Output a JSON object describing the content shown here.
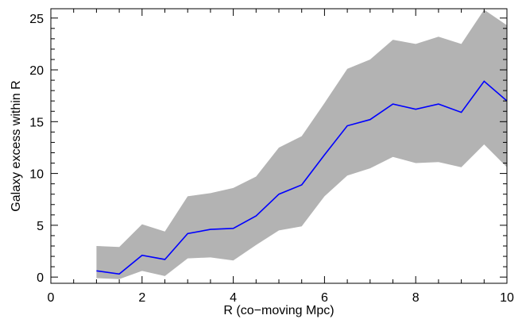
{
  "chart_data": {
    "type": "area",
    "xlabel": "R (co−moving Mpc)",
    "ylabel": "Galaxy excess within R",
    "xlim": [
      0,
      10
    ],
    "ylim": [
      -0.6,
      25.9
    ],
    "xticks": [
      0,
      2,
      4,
      6,
      8,
      10
    ],
    "xtick_labels": [
      "0",
      "2",
      "4",
      "6",
      "8",
      "10"
    ],
    "yticks": [
      0,
      5,
      10,
      15,
      20,
      25
    ],
    "ytick_labels": [
      "0",
      "5",
      "10",
      "15",
      "20",
      "25"
    ],
    "x_minor_step": 0.5,
    "y_minor_step": 1,
    "grid": false,
    "series": [
      {
        "color": "#0000ff",
        "x": [
          1.0,
          1.5,
          2.0,
          2.5,
          3.0,
          3.5,
          4.0,
          4.5,
          5.0,
          5.5,
          6.0,
          6.5,
          7.0,
          7.5,
          8.0,
          8.5,
          9.0,
          9.5,
          10.0
        ],
        "values": [
          0.6,
          0.3,
          2.1,
          1.7,
          4.2,
          4.6,
          4.7,
          5.9,
          8.0,
          8.9,
          11.8,
          14.6,
          15.2,
          16.7,
          16.2,
          16.7,
          15.9,
          18.9,
          17.0
        ]
      }
    ],
    "band": {
      "color": "#b3b3b3",
      "x": [
        1.0,
        1.5,
        2.0,
        2.5,
        3.0,
        3.5,
        4.0,
        4.5,
        5.0,
        5.5,
        6.0,
        6.5,
        7.0,
        7.5,
        8.0,
        8.5,
        9.0,
        9.5,
        10.0
      ],
      "upper": [
        3.0,
        2.9,
        5.1,
        4.4,
        7.8,
        8.1,
        8.6,
        9.7,
        12.5,
        13.6,
        16.8,
        20.1,
        21.0,
        22.9,
        22.5,
        23.2,
        22.5,
        25.8,
        24.3
      ],
      "lower": [
        -0.1,
        -0.2,
        0.6,
        0.1,
        1.8,
        1.9,
        1.6,
        3.1,
        4.5,
        4.9,
        7.8,
        9.8,
        10.5,
        11.6,
        11.0,
        11.1,
        10.6,
        12.8,
        10.6
      ]
    }
  }
}
